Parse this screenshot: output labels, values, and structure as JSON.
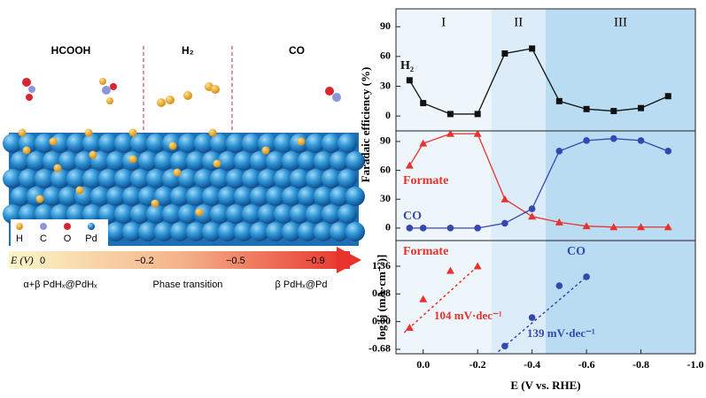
{
  "illustration": {
    "phases": [
      "HCOOH",
      "H₂",
      "CO"
    ],
    "legend": [
      "H",
      "C",
      "O",
      "Pd"
    ],
    "potential_label": "E (V)",
    "potentials": [
      "0",
      "−0.2",
      "−0.5",
      "−0.9"
    ],
    "stages": [
      "α+β PdHₓ@PdHₓ",
      "Phase transition",
      "β PdHₓ@Pd"
    ]
  },
  "chart_data": {
    "type": "line",
    "xlabel": "E (V vs. RHE)",
    "xlim": [
      0.1,
      -1.0
    ],
    "xticks": [
      {
        "value": 0,
        "label": "0.0"
      },
      -0.2,
      -0.4,
      -0.6,
      -0.8,
      {
        "value": -1,
        "label": "-1.0"
      }
    ],
    "regions": [
      {
        "label": "I",
        "from": 0.1,
        "to": -0.25,
        "color": "#eef6fc"
      },
      {
        "label": "II",
        "from": -0.25,
        "to": -0.45,
        "color": "#dcedf9"
      },
      {
        "label": "III",
        "from": -0.45,
        "to": -1.0,
        "color": "#b9dcf2"
      }
    ],
    "ylabel": "Faradaic efficiency (%)",
    "x": [
      0.05,
      0,
      -0.1,
      -0.2,
      -0.3,
      -0.4,
      -0.5,
      -0.6,
      -0.7,
      -0.8,
      -0.9
    ],
    "panels": [
      {
        "ylim": [
          -15,
          108
        ],
        "yticks": [
          0,
          30,
          60,
          90
        ],
        "series": [
          {
            "name": "H₂",
            "color": "#111111",
            "marker": "square",
            "values": [
              36,
              13,
              2,
              2,
              63,
              68,
              15,
              7,
              5,
              8,
              20
            ]
          }
        ]
      },
      {
        "ylim": [
          -13,
          101
        ],
        "yticks": [
          0,
          30,
          60,
          90
        ],
        "series": [
          {
            "name": "Formate",
            "color": "#e8322c",
            "marker": "triangle",
            "values": [
              65,
              88,
              98,
              98,
              30,
              12,
              6,
              2,
              1,
              1,
              1
            ]
          },
          {
            "name": "CO",
            "color": "#3348b0",
            "marker": "circle",
            "values": [
              0,
              0,
              0,
              0,
              5,
              20,
              80,
              91,
              93,
              91,
              80
            ]
          }
        ]
      },
      {
        "ylabel": "log [j (mA·cm⁻²)]",
        "ylim": [
          -0.79,
          1.99
        ],
        "yticks": [
          {
            "value": -0.68,
            "label": "-0.68"
          },
          {
            "value": 0,
            "label": "0.00"
          },
          0.68,
          1.36
        ],
        "fit": "dashed",
        "series": [
          {
            "name": "Formate",
            "color": "#e8322c",
            "marker": "triangle",
            "x": [
              0.05,
              0,
              -0.1,
              -0.2
            ],
            "values": [
              -0.15,
              0.55,
              1.25,
              1.36
            ],
            "slope_label": "104 mV·dec⁻¹"
          },
          {
            "name": "CO",
            "color": "#3348b0",
            "marker": "circle",
            "x": [
              -0.3,
              -0.4,
              -0.5,
              -0.6
            ],
            "values": [
              -0.6,
              0.1,
              0.88,
              1.1
            ],
            "slope_label": "139 mV·dec⁻¹"
          }
        ]
      }
    ]
  }
}
